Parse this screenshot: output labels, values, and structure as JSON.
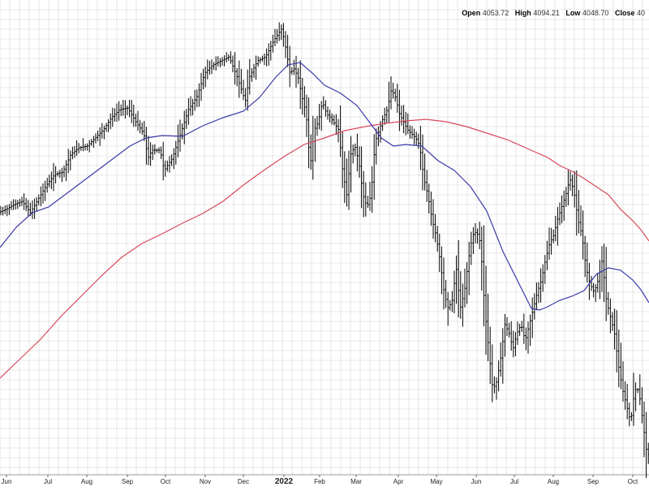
{
  "header": {
    "open_label": "Open",
    "open_value": "4053.72",
    "high_label": "High",
    "high_value": "4094.21",
    "low_label": "Low",
    "low_value": "4048.70",
    "close_label": "Close",
    "close_value": "40"
  },
  "colors": {
    "bars": "#000000",
    "ma_short": "#3a3aa8",
    "ma_long": "#d8485c",
    "grid": "#d6d6d6",
    "background": "#ffffff"
  },
  "chart_data": {
    "type": "line",
    "title": "",
    "xlabel": "",
    "ylabel": "",
    "grid": true,
    "legend": "none",
    "x_tick_labels": [
      {
        "label": "Jun",
        "x": 8,
        "bold": false
      },
      {
        "label": "Jul",
        "x": 59,
        "bold": false
      },
      {
        "label": "Aug",
        "x": 107,
        "bold": false
      },
      {
        "label": "Sep",
        "x": 157,
        "bold": false
      },
      {
        "label": "Oct",
        "x": 204,
        "bold": false
      },
      {
        "label": "Nov",
        "x": 253,
        "bold": false
      },
      {
        "label": "Dec",
        "x": 300,
        "bold": false
      },
      {
        "label": "2022",
        "x": 350,
        "bold": true
      },
      {
        "label": "Feb",
        "x": 394,
        "bold": false
      },
      {
        "label": "Mar",
        "x": 439,
        "bold": false
      },
      {
        "label": "Apr",
        "x": 491,
        "bold": false
      },
      {
        "label": "May",
        "x": 538,
        "bold": false
      },
      {
        "label": "Jun",
        "x": 587,
        "bold": false
      },
      {
        "label": "Jul",
        "x": 634,
        "bold": false
      },
      {
        "label": "Aug",
        "x": 682,
        "bold": false
      },
      {
        "label": "Sep",
        "x": 731,
        "bold": false
      },
      {
        "label": "Oct",
        "x": 780,
        "bold": false
      }
    ],
    "y_range": [
      0,
      600
    ],
    "series": [
      {
        "kind": "ohlc",
        "close_path": [
          [
            0,
            262
          ],
          [
            10,
            258
          ],
          [
            20,
            252
          ],
          [
            30,
            248
          ],
          [
            40,
            262
          ],
          [
            50,
            245
          ],
          [
            60,
            228
          ],
          [
            70,
            215
          ],
          [
            80,
            212
          ],
          [
            90,
            190
          ],
          [
            100,
            182
          ],
          [
            110,
            180
          ],
          [
            120,
            170
          ],
          [
            130,
            160
          ],
          [
            140,
            145
          ],
          [
            150,
            135
          ],
          [
            160,
            133
          ],
          [
            170,
            150
          ],
          [
            180,
            165
          ],
          [
            185,
            195
          ],
          [
            190,
            185
          ],
          [
            200,
            185
          ],
          [
            205,
            210
          ],
          [
            215,
            195
          ],
          [
            225,
            165
          ],
          [
            235,
            135
          ],
          [
            245,
            120
          ],
          [
            255,
            90
          ],
          [
            265,
            80
          ],
          [
            275,
            75
          ],
          [
            285,
            70
          ],
          [
            295,
            95
          ],
          [
            305,
            125
          ],
          [
            310,
            95
          ],
          [
            320,
            75
          ],
          [
            330,
            70
          ],
          [
            340,
            50
          ],
          [
            350,
            35
          ],
          [
            355,
            60
          ],
          [
            360,
            90
          ],
          [
            365,
            85
          ],
          [
            370,
            95
          ],
          [
            375,
            120
          ],
          [
            380,
            140
          ],
          [
            385,
            205
          ],
          [
            390,
            160
          ],
          [
            395,
            150
          ],
          [
            400,
            125
          ],
          [
            405,
            140
          ],
          [
            410,
            145
          ],
          [
            420,
            160
          ],
          [
            425,
            210
          ],
          [
            430,
            240
          ],
          [
            435,
            190
          ],
          [
            440,
            180
          ],
          [
            445,
            200
          ],
          [
            450,
            240
          ],
          [
            455,
            255
          ],
          [
            460,
            240
          ],
          [
            465,
            175
          ],
          [
            470,
            160
          ],
          [
            475,
            145
          ],
          [
            480,
            135
          ],
          [
            485,
            110
          ],
          [
            490,
            120
          ],
          [
            495,
            140
          ],
          [
            500,
            150
          ],
          [
            505,
            160
          ],
          [
            510,
            165
          ],
          [
            515,
            170
          ],
          [
            520,
            180
          ],
          [
            525,
            220
          ],
          [
            530,
            240
          ],
          [
            535,
            270
          ],
          [
            540,
            290
          ],
          [
            545,
            320
          ],
          [
            550,
            360
          ],
          [
            555,
            380
          ],
          [
            560,
            370
          ],
          [
            565,
            330
          ],
          [
            570,
            380
          ],
          [
            575,
            360
          ],
          [
            580,
            320
          ],
          [
            585,
            290
          ],
          [
            590,
            285
          ],
          [
            595,
            300
          ],
          [
            600,
            380
          ],
          [
            605,
            430
          ],
          [
            610,
            480
          ],
          [
            615,
            470
          ],
          [
            620,
            440
          ],
          [
            625,
            400
          ],
          [
            630,
            410
          ],
          [
            635,
            430
          ],
          [
            640,
            410
          ],
          [
            645,
            400
          ],
          [
            650,
            420
          ],
          [
            655,
            400
          ],
          [
            660,
            380
          ],
          [
            665,
            360
          ],
          [
            670,
            345
          ],
          [
            675,
            320
          ],
          [
            680,
            300
          ],
          [
            685,
            290
          ],
          [
            690,
            270
          ],
          [
            695,
            255
          ],
          [
            700,
            240
          ],
          [
            705,
            220
          ],
          [
            710,
            235
          ],
          [
            715,
            270
          ],
          [
            720,
            290
          ],
          [
            725,
            330
          ],
          [
            730,
            350
          ],
          [
            735,
            360
          ],
          [
            740,
            345
          ],
          [
            745,
            320
          ],
          [
            750,
            370
          ],
          [
            755,
            390
          ],
          [
            760,
            410
          ],
          [
            765,
            450
          ],
          [
            770,
            480
          ],
          [
            775,
            500
          ],
          [
            780,
            520
          ],
          [
            785,
            480
          ],
          [
            790,
            480
          ],
          [
            795,
            520
          ],
          [
            800,
            560
          ]
        ],
        "color": "#000000"
      },
      {
        "kind": "moving-average-short",
        "points": [
          [
            0,
            305
          ],
          [
            20,
            280
          ],
          [
            40,
            262
          ],
          [
            60,
            255
          ],
          [
            80,
            240
          ],
          [
            100,
            225
          ],
          [
            120,
            210
          ],
          [
            140,
            195
          ],
          [
            160,
            180
          ],
          [
            180,
            170
          ],
          [
            200,
            167
          ],
          [
            225,
            168
          ],
          [
            250,
            155
          ],
          [
            275,
            145
          ],
          [
            300,
            137
          ],
          [
            320,
            120
          ],
          [
            340,
            95
          ],
          [
            355,
            80
          ],
          [
            370,
            77
          ],
          [
            385,
            90
          ],
          [
            400,
            105
          ],
          [
            420,
            115
          ],
          [
            440,
            130
          ],
          [
            455,
            150
          ],
          [
            470,
            170
          ],
          [
            485,
            180
          ],
          [
            500,
            178
          ],
          [
            520,
            180
          ],
          [
            540,
            198
          ],
          [
            560,
            210
          ],
          [
            580,
            230
          ],
          [
            600,
            260
          ],
          [
            620,
            310
          ],
          [
            640,
            350
          ],
          [
            655,
            380
          ],
          [
            665,
            382
          ],
          [
            675,
            378
          ],
          [
            690,
            370
          ],
          [
            705,
            365
          ],
          [
            720,
            358
          ],
          [
            735,
            338
          ],
          [
            750,
            330
          ],
          [
            765,
            333
          ],
          [
            780,
            345
          ],
          [
            790,
            357
          ],
          [
            800,
            373
          ]
        ],
        "color": "#3a3aa8"
      },
      {
        "kind": "moving-average-long",
        "points": [
          [
            0,
            466
          ],
          [
            25,
            442
          ],
          [
            50,
            418
          ],
          [
            75,
            390
          ],
          [
            100,
            365
          ],
          [
            125,
            340
          ],
          [
            150,
            317
          ],
          [
            175,
            300
          ],
          [
            200,
            288
          ],
          [
            225,
            275
          ],
          [
            250,
            263
          ],
          [
            275,
            248
          ],
          [
            300,
            228
          ],
          [
            325,
            210
          ],
          [
            350,
            193
          ],
          [
            375,
            178
          ],
          [
            400,
            170
          ],
          [
            425,
            161
          ],
          [
            450,
            156
          ],
          [
            475,
            152
          ],
          [
            500,
            149
          ],
          [
            525,
            147
          ],
          [
            550,
            150
          ],
          [
            575,
            156
          ],
          [
            600,
            164
          ],
          [
            625,
            172
          ],
          [
            650,
            183
          ],
          [
            675,
            194
          ],
          [
            690,
            204
          ],
          [
            705,
            211
          ],
          [
            720,
            220
          ],
          [
            735,
            230
          ],
          [
            750,
            240
          ],
          [
            765,
            258
          ],
          [
            780,
            272
          ],
          [
            790,
            283
          ],
          [
            800,
            297
          ]
        ],
        "color": "#d8485c"
      }
    ]
  }
}
